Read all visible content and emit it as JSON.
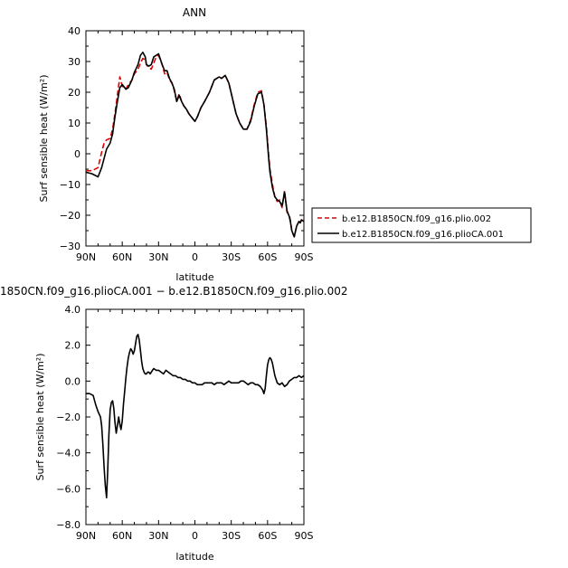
{
  "chart_data": [
    {
      "type": "line",
      "title": "ANN",
      "xlabel": "latitude",
      "ylabel": "Surf sensible heat (W/m²)",
      "xlim": [
        90,
        -90
      ],
      "ylim": [
        -30,
        40
      ],
      "x_ticks": [
        90,
        60,
        30,
        0,
        -30,
        -60,
        -90
      ],
      "x_tick_labels": [
        "90N",
        "60N",
        "30N",
        "0",
        "30S",
        "60S",
        "90S"
      ],
      "y_ticks": [
        -30,
        -20,
        -10,
        0,
        10,
        20,
        30,
        40
      ],
      "y_tick_labels": [
        "−30",
        "−20",
        "−10",
        "0",
        "10",
        "20",
        "30",
        "40"
      ],
      "legend_position": "right",
      "series": [
        {
          "name": "b.e12.B1850CN.f09_g16.plio.002",
          "color": "#dd0000",
          "dash": "dashed",
          "x": [
            90,
            85,
            80,
            77,
            75,
            73,
            70,
            68,
            66,
            64,
            62,
            60,
            57,
            55,
            52,
            50,
            47,
            45,
            43,
            41,
            40,
            38,
            36,
            34,
            32,
            30,
            27,
            25,
            23,
            21,
            19,
            17,
            15,
            13,
            11,
            9,
            7,
            5,
            3,
            1,
            0,
            -2,
            -5,
            -8,
            -12,
            -16,
            -20,
            -22,
            -25,
            -28,
            -31,
            -34,
            -37,
            -40,
            -43,
            -46,
            -49,
            -52,
            -55,
            -57,
            -59,
            -61,
            -62,
            -64,
            -66,
            -68,
            -70,
            -72,
            -74,
            -76,
            -78,
            -79,
            -80,
            -82,
            -84,
            -86,
            -87,
            -88,
            -90
          ],
          "y": [
            -5.5,
            -5.5,
            -4.5,
            0.5,
            3.5,
            4.5,
            5.0,
            8.0,
            13.0,
            19.0,
            25.0,
            22.0,
            21.0,
            22.5,
            24.0,
            26.0,
            27.5,
            29.5,
            31.0,
            30.5,
            29.0,
            28.0,
            27.5,
            29.5,
            31.5,
            32.0,
            29.0,
            26.0,
            26.5,
            24.0,
            23.0,
            20.5,
            17.0,
            19.5,
            17.0,
            15.5,
            14.5,
            13.0,
            12.0,
            11.0,
            10.8,
            12.0,
            15.0,
            17.0,
            20.0,
            24.0,
            25.0,
            24.5,
            25.5,
            23.0,
            18.0,
            13.0,
            10.0,
            8.0,
            8.0,
            11.0,
            16.0,
            20.0,
            20.5,
            16.0,
            9.0,
            -1.0,
            -5.0,
            -10.0,
            -14.0,
            -15.5,
            -15.0,
            -17.5,
            -12.0,
            -19.0,
            -20.0,
            -22.0,
            -25.0,
            -27.0,
            -23.5,
            -22.0,
            -22.5,
            -21.5,
            -22.0
          ]
        },
        {
          "name": "b.e12.B1850CN.f09_g16.plioCA.001",
          "color": "#000000",
          "dash": "solid",
          "x": [
            90,
            85,
            80,
            77,
            75,
            73,
            70,
            68,
            66,
            64,
            62,
            60,
            57,
            55,
            52,
            50,
            47,
            45,
            43,
            41,
            40,
            38,
            36,
            34,
            32,
            30,
            27,
            25,
            23,
            21,
            19,
            17,
            15,
            13,
            11,
            9,
            7,
            5,
            3,
            1,
            0,
            -2,
            -5,
            -8,
            -12,
            -16,
            -20,
            -22,
            -25,
            -28,
            -31,
            -34,
            -37,
            -40,
            -43,
            -46,
            -49,
            -52,
            -55,
            -57,
            -59,
            -61,
            -62,
            -64,
            -66,
            -68,
            -70,
            -72,
            -74,
            -76,
            -78,
            -79,
            -80,
            -82,
            -84,
            -86,
            -87,
            -88,
            -90
          ],
          "y": [
            -6.0,
            -6.5,
            -7.5,
            -4.5,
            -1.5,
            1.5,
            3.5,
            6.5,
            12.0,
            17.0,
            21.5,
            22.5,
            21.0,
            21.5,
            24.0,
            26.5,
            29.0,
            32.0,
            33.0,
            31.5,
            29.0,
            28.5,
            29.0,
            31.5,
            32.0,
            32.5,
            29.0,
            27.0,
            27.0,
            24.5,
            23.0,
            21.0,
            17.0,
            19.0,
            17.0,
            15.5,
            14.5,
            13.0,
            12.0,
            11.0,
            10.5,
            12.0,
            15.0,
            17.0,
            20.0,
            24.0,
            25.0,
            24.5,
            25.5,
            23.0,
            18.0,
            13.0,
            10.0,
            8.0,
            8.0,
            10.5,
            15.5,
            19.5,
            20.0,
            16.0,
            8.0,
            -2.0,
            -6.0,
            -11.0,
            -14.0,
            -15.0,
            -15.5,
            -17.0,
            -12.5,
            -18.5,
            -20.5,
            -22.5,
            -25.0,
            -27.0,
            -23.5,
            -22.0,
            -22.5,
            -21.5,
            -22.0
          ]
        }
      ]
    },
    {
      "type": "line",
      "title": "1850CN.f09_g16.plioCA.001 − b.e12.B1850CN.f09_g16.plio.002",
      "xlabel": "latitude",
      "ylabel": "Surf sensible heat (W/m²)",
      "xlim": [
        90,
        -90
      ],
      "ylim": [
        -8,
        4
      ],
      "x_ticks": [
        90,
        60,
        30,
        0,
        -30,
        -60,
        -90
      ],
      "x_tick_labels": [
        "90N",
        "60N",
        "30N",
        "0",
        "30S",
        "60S",
        "90S"
      ],
      "y_ticks": [
        -8,
        -6,
        -4,
        -2,
        0,
        2,
        4
      ],
      "y_tick_labels": [
        "−8.0",
        "−6.0",
        "−4.0",
        "−2.0",
        "0.0",
        "2.0",
        "4.0"
      ],
      "series": [
        {
          "color": "#000000",
          "dash": "solid",
          "x": [
            90,
            87,
            84,
            82,
            80,
            78,
            77,
            76,
            75,
            74,
            73,
            72,
            71,
            70,
            69,
            68,
            67,
            66,
            65,
            64,
            63,
            62,
            61,
            60,
            59,
            58,
            57,
            56,
            55,
            54,
            53,
            52,
            51,
            50,
            49,
            48,
            47,
            46,
            45,
            44,
            43,
            42,
            41,
            40,
            39,
            38,
            37,
            36,
            35,
            34,
            32,
            30,
            28,
            26,
            24,
            22,
            20,
            18,
            16,
            14,
            12,
            10,
            8,
            6,
            4,
            2,
            0,
            -2,
            -4,
            -6,
            -8,
            -10,
            -12,
            -14,
            -16,
            -18,
            -20,
            -22,
            -24,
            -26,
            -28,
            -30,
            -32,
            -34,
            -36,
            -38,
            -40,
            -42,
            -44,
            -46,
            -48,
            -50,
            -52,
            -54,
            -56,
            -57,
            -58,
            -59,
            -60,
            -61,
            -62,
            -63,
            -64,
            -66,
            -68,
            -70,
            -72,
            -74,
            -76,
            -78,
            -80,
            -82,
            -84,
            -86,
            -88,
            -90
          ],
          "y": [
            -0.7,
            -0.7,
            -0.8,
            -1.3,
            -1.7,
            -2.0,
            -2.5,
            -3.5,
            -4.8,
            -5.8,
            -6.5,
            -5.0,
            -3.0,
            -1.6,
            -1.2,
            -1.1,
            -1.5,
            -2.3,
            -2.9,
            -2.5,
            -2.0,
            -2.4,
            -2.7,
            -2.2,
            -1.3,
            -0.6,
            0.2,
            0.8,
            1.3,
            1.6,
            1.8,
            1.7,
            1.5,
            1.7,
            2.1,
            2.5,
            2.6,
            2.3,
            1.7,
            1.1,
            0.7,
            0.5,
            0.4,
            0.4,
            0.5,
            0.5,
            0.4,
            0.5,
            0.6,
            0.7,
            0.6,
            0.6,
            0.5,
            0.4,
            0.6,
            0.5,
            0.4,
            0.3,
            0.3,
            0.2,
            0.2,
            0.1,
            0.1,
            0.0,
            0.0,
            -0.1,
            -0.1,
            -0.2,
            -0.2,
            -0.2,
            -0.1,
            -0.1,
            -0.1,
            -0.1,
            -0.2,
            -0.1,
            -0.1,
            -0.1,
            -0.2,
            -0.1,
            0.0,
            -0.1,
            -0.1,
            -0.1,
            -0.1,
            0.0,
            0.0,
            -0.1,
            -0.2,
            -0.1,
            -0.1,
            -0.2,
            -0.2,
            -0.3,
            -0.5,
            -0.7,
            -0.4,
            0.3,
            0.9,
            1.2,
            1.3,
            1.2,
            1.0,
            0.3,
            -0.1,
            -0.2,
            -0.1,
            -0.3,
            -0.2,
            0.0,
            0.1,
            0.2,
            0.2,
            0.3,
            0.2,
            0.3
          ]
        }
      ]
    }
  ]
}
